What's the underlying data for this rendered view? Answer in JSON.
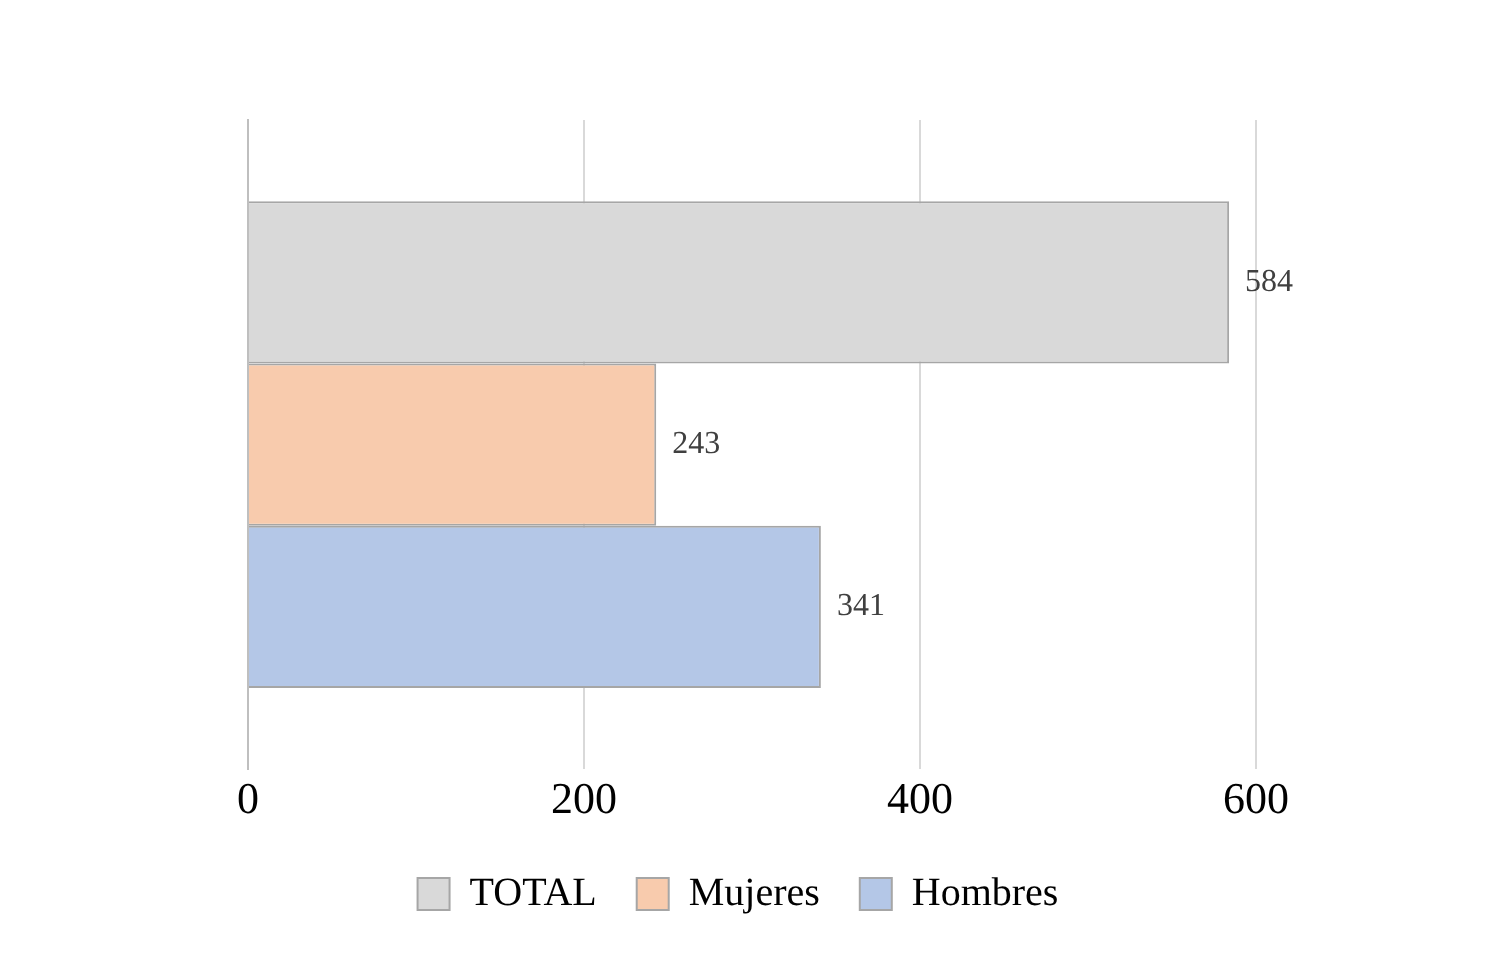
{
  "chart_data": {
    "type": "bar",
    "orientation": "horizontal",
    "categories": [
      null
    ],
    "series": [
      {
        "name": "TOTAL",
        "color": "#d9d9d9",
        "values": [
          584
        ]
      },
      {
        "name": "Mujeres",
        "color": "#f8cbad",
        "values": [
          243
        ]
      },
      {
        "name": "Hombres",
        "color": "#b4c7e7",
        "values": [
          341
        ]
      }
    ],
    "xlim": [
      0,
      600
    ],
    "xticks": [
      0,
      200,
      400,
      600
    ],
    "grid": "x",
    "legend": "bottom",
    "data_labels": true
  }
}
